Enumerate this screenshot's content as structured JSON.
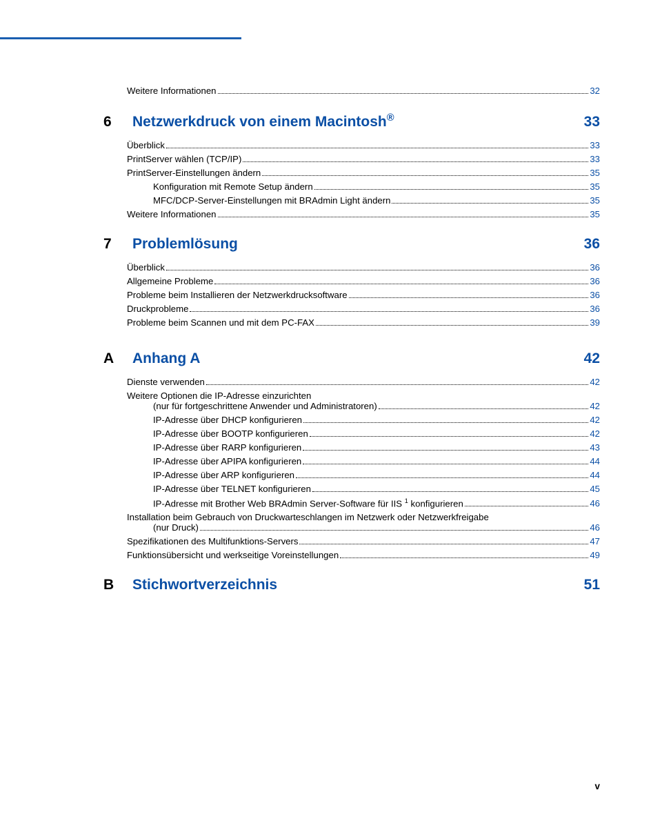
{
  "colors": {
    "link": "#0b4fa5",
    "topbar": "#1a5eb0",
    "text": "#000000",
    "background": "#ffffff"
  },
  "page_number": "v",
  "pre_entries": [
    {
      "level": 1,
      "label": "Weitere Informationen",
      "page": "32"
    }
  ],
  "sections": [
    {
      "num": "6",
      "title": "Netzwerkdruck von einem Macintosh",
      "title_sup": "®",
      "page": "33",
      "entries": [
        {
          "level": 1,
          "label": "Überblick",
          "page": "33"
        },
        {
          "level": 1,
          "label": "PrintServer wählen (TCP/IP)",
          "page": "33"
        },
        {
          "level": 1,
          "label": "PrintServer-Einstellungen ändern",
          "page": "35"
        },
        {
          "level": 2,
          "label": "Konfiguration mit Remote Setup ändern",
          "page": "35"
        },
        {
          "level": 2,
          "label": "MFC/DCP-Server-Einstellungen mit BRAdmin Light ändern",
          "page": "35"
        },
        {
          "level": 1,
          "label": "Weitere Informationen",
          "page": "35"
        }
      ]
    },
    {
      "num": "7",
      "title": "Problemlösung",
      "page": "36",
      "entries": [
        {
          "level": 1,
          "label": "Überblick",
          "page": "36"
        },
        {
          "level": 1,
          "label": "Allgemeine Probleme",
          "page": "36"
        },
        {
          "level": 1,
          "label": "Probleme beim Installieren der Netzwerkdrucksoftware",
          "page": "36"
        },
        {
          "level": 1,
          "label": "Druckprobleme",
          "page": "36"
        },
        {
          "level": 1,
          "label": "Probleme beim Scannen und mit dem PC-FAX",
          "page": "39",
          "extra_gap": true
        },
        {
          "spacer": true
        }
      ]
    },
    {
      "num": "A",
      "title": "Anhang A",
      "page": "42",
      "entries": [
        {
          "level": 1,
          "label": "Dienste verwenden",
          "page": "42"
        },
        {
          "level": 1,
          "label": "Weitere Optionen die IP-Adresse einzurichten",
          "cont_level": 2,
          "cont_label": "(nur für fortgeschrittene Anwender und Administratoren)",
          "page": "42",
          "multiline": true
        },
        {
          "level": 2,
          "label": "IP-Adresse über DHCP konfigurieren",
          "page": "42"
        },
        {
          "level": 2,
          "label": "IP-Adresse über BOOTP konfigurieren",
          "page": "42"
        },
        {
          "level": 2,
          "label": "IP-Adresse über RARP konfigurieren",
          "page": "43"
        },
        {
          "level": 2,
          "label": "IP-Adresse über APIPA konfigurieren",
          "page": "44"
        },
        {
          "level": 2,
          "label": "IP-Adresse über ARP konfigurieren",
          "page": "44"
        },
        {
          "level": 2,
          "label": "IP-Adresse über TELNET konfigurieren",
          "page": "45"
        },
        {
          "level": 2,
          "label_html": "IP-Adresse mit Brother Web BRAdmin Server-Software für IIS <sup>1</sup> konfigurieren",
          "page": "46"
        },
        {
          "level": 1,
          "label": "Installation beim Gebrauch von Druckwarteschlangen im Netzwerk oder Netzwerkfreigabe",
          "cont_level": 2,
          "cont_label": "(nur Druck)",
          "page": "46",
          "multiline": true
        },
        {
          "level": 1,
          "label": "Spezifikationen des Multifunktions-Servers",
          "page": "47"
        },
        {
          "level": 1,
          "label": "Funktionsübersicht und werkseitige Voreinstellungen",
          "page": "49"
        }
      ]
    },
    {
      "num": "B",
      "title": "Stichwortverzeichnis",
      "page": "51",
      "entries": []
    }
  ]
}
